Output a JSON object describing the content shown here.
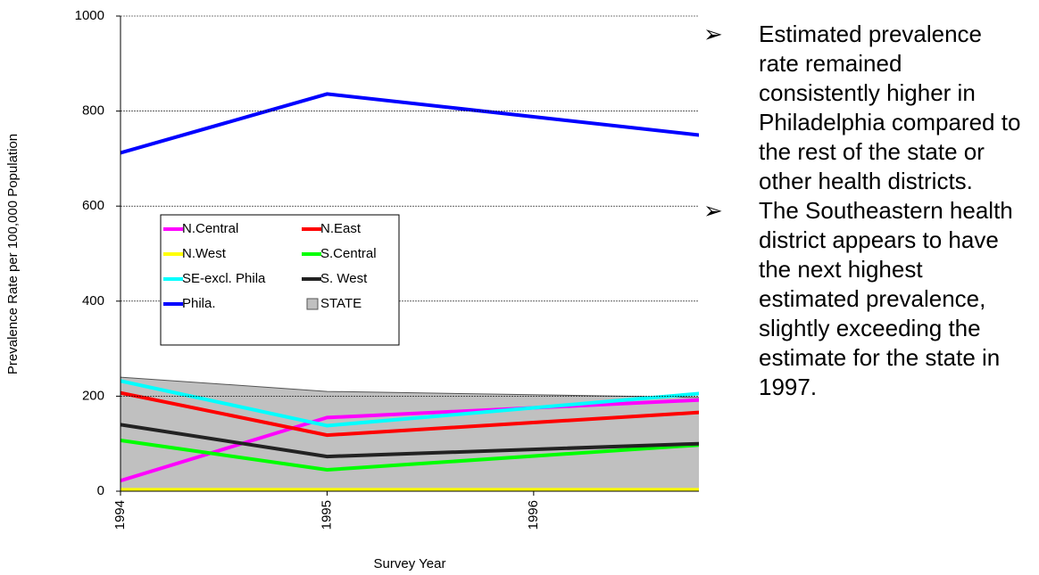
{
  "chart_data": {
    "type": "line",
    "y_label": "Prevalence Rate per 100,000 Population",
    "x_label": "Survey Year",
    "x": [
      1994,
      1995,
      1997
    ],
    "xlim": [
      1994,
      1996.8
    ],
    "xticks": [
      1994,
      1995,
      1996
    ],
    "ylim": [
      0,
      1000
    ],
    "yticks": [
      0,
      200,
      400,
      600,
      800,
      1000
    ],
    "grid": true,
    "series": [
      {
        "name": "STATE",
        "color": "#c0c0c0",
        "kind": "area",
        "values": [
          240,
          210,
          196
        ]
      },
      {
        "name": "N.Central",
        "color": "#ff00ff",
        "values": [
          22,
          155,
          196
        ]
      },
      {
        "name": "N.East",
        "color": "#ff0000",
        "values": [
          207,
          118,
          171
        ]
      },
      {
        "name": "N.West",
        "color": "#ffff00",
        "values": [
          3,
          3,
          3
        ]
      },
      {
        "name": "S.Central",
        "color": "#00ff00",
        "values": [
          107,
          45,
          103
        ]
      },
      {
        "name": "SE-excl. Phila",
        "color": "#00ffff",
        "values": [
          232,
          138,
          213
        ]
      },
      {
        "name": "S. West",
        "color": "#222222",
        "values": [
          140,
          73,
          103
        ]
      },
      {
        "name": "Phila.",
        "color": "#0000ff",
        "values": [
          712,
          836,
          740
        ]
      }
    ]
  },
  "notes": {
    "bullet": "➢",
    "items": [
      "Estimated prevalence rate remained consistently higher in Philadelphia compared to the rest of the state or other health districts.",
      "The Southeastern health district appears to have the next highest estimated prevalence, slightly exceeding the estimate for the state in 1997."
    ]
  }
}
